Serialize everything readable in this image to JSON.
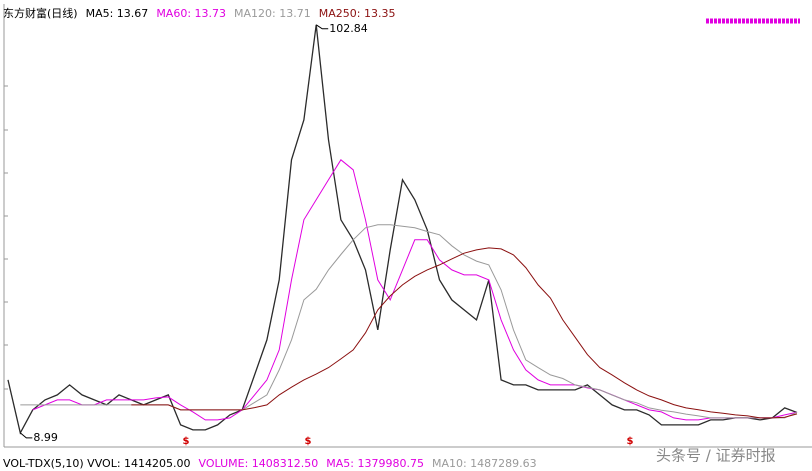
{
  "chart_data": {
    "type": "line",
    "title": "东方财富(日线)",
    "ma5_label": "MA5: 13.67",
    "ylim": [
      6.2,
      106.7
    ],
    "series": [
      {
        "name": "东方财富(日线)",
        "color": "#2b2b2b",
        "values": [
          21.18,
          8.99,
          14.28,
          16.58,
          17.73,
          20.03,
          17.73,
          16.58,
          15.43,
          17.73,
          16.58,
          15.43,
          16.58,
          17.73,
          10.83,
          9.68,
          9.68,
          10.83,
          13.13,
          14.28,
          22.33,
          30.38,
          44.18,
          71.78,
          80.98,
          102.84,
          76.38,
          57.98,
          53.38,
          46.48,
          32.68,
          51.08,
          67.18,
          62.58,
          55.68,
          44.18,
          39.58,
          37.28,
          34.98,
          44.18,
          21.18,
          20.03,
          20.03,
          18.88,
          18.88,
          18.88,
          18.88,
          20.03,
          17.73,
          15.43,
          14.28,
          14.28,
          13.13,
          10.83,
          10.83,
          10.83,
          10.83,
          11.98,
          11.98,
          12.44,
          12.44,
          11.98,
          12.44,
          14.74,
          13.67
        ]
      },
      {
        "name": "MA60: 13.73",
        "color": "#e000e0",
        "values": [
          null,
          null,
          14.28,
          15.43,
          16.58,
          16.58,
          15.43,
          15.43,
          16.58,
          16.58,
          16.58,
          16.58,
          17.04,
          17.27,
          15.43,
          13.82,
          11.98,
          11.98,
          12.44,
          14.28,
          17.73,
          21.18,
          28.08,
          44.18,
          57.98,
          62.58,
          67.18,
          71.78,
          69.48,
          57.98,
          44.18,
          39.58,
          46.48,
          53.38,
          53.38,
          48.78,
          46.48,
          45.33,
          45.33,
          44.18,
          34.98,
          28.08,
          23.48,
          21.18,
          20.03,
          20.03,
          20.03,
          19.34,
          18.88,
          17.73,
          16.58,
          15.43,
          14.28,
          13.82,
          12.44,
          11.98,
          11.98,
          12.44,
          12.44,
          12.44,
          12.44,
          12.44,
          12.44,
          13.13,
          13.73
        ]
      },
      {
        "name": "MA120: 13.71",
        "color": "#9a9a9a",
        "values": [
          null,
          15.43,
          15.43,
          15.43,
          15.43,
          15.43,
          15.43,
          15.43,
          15.43,
          15.43,
          15.43,
          15.43,
          15.43,
          15.43,
          14.28,
          14.28,
          14.28,
          14.28,
          14.28,
          14.28,
          16.0,
          17.73,
          23.48,
          30.38,
          39.58,
          42.0,
          46.48,
          50.0,
          53.38,
          56.14,
          56.83,
          56.83,
          56.5,
          56.14,
          55.3,
          54.53,
          52.0,
          49.93,
          48.5,
          47.63,
          41.88,
          32.68,
          25.78,
          24.0,
          22.33,
          21.5,
          20.03,
          19.5,
          18.88,
          17.7,
          16.58,
          15.9,
          14.74,
          14.2,
          13.82,
          13.3,
          12.9,
          12.44,
          12.44,
          12.44,
          12.44,
          12.44,
          12.44,
          12.44,
          13.71
        ]
      },
      {
        "name": "MA250: 13.35",
        "color": "#8b1010",
        "values": [
          null,
          null,
          null,
          null,
          null,
          null,
          null,
          null,
          null,
          null,
          15.43,
          15.43,
          15.43,
          15.43,
          14.28,
          14.28,
          14.28,
          14.28,
          14.28,
          14.28,
          14.8,
          15.43,
          17.73,
          19.5,
          21.18,
          22.5,
          24.0,
          26.0,
          28.08,
          32.0,
          37.28,
          40.5,
          43.03,
          45.0,
          46.48,
          47.63,
          49.0,
          50.3,
          51.08,
          51.53,
          51.3,
          49.93,
          47.0,
          43.03,
          40.0,
          34.98,
          31.0,
          27.0,
          24.0,
          22.33,
          20.5,
          18.88,
          17.5,
          16.58,
          15.5,
          14.74,
          14.3,
          13.82,
          13.5,
          13.13,
          12.9,
          12.44,
          12.44,
          12.6,
          13.35
        ]
      }
    ],
    "volume_header": [
      {
        "text": "VOL-TDX(5,10) VVOL: 1414205.00",
        "color": "#000000"
      },
      {
        "text": "VOLUME: 1408312.50",
        "color": "#e000e0"
      },
      {
        "text": "MA5: 1379980.75",
        "color": "#e000e0"
      },
      {
        "text": "MA10: 1487289.63",
        "color": "#9a9a9a"
      }
    ],
    "signals": [
      "$",
      "$",
      "$"
    ],
    "watermark": "头条号 / 证券时报"
  }
}
